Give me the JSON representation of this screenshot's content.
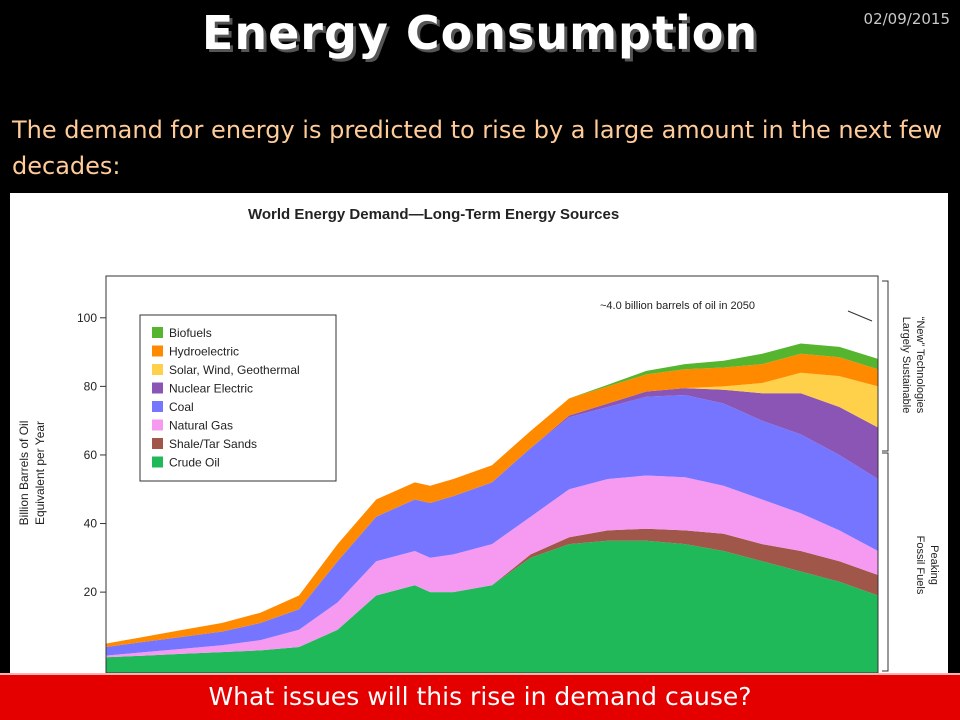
{
  "slide": {
    "title": "Energy Consumption",
    "date": "02/09/2015",
    "body": "The demand for energy is predicted to rise by a large amount in the next few decades:",
    "footer": "What issues will this rise in demand cause?"
  },
  "chart_data": {
    "type": "area",
    "stacked": true,
    "title": "World Energy Demand—Long-Term Energy Sources",
    "ylabel_lines": [
      "Billion Barrels of Oil",
      "Equivalent per Year"
    ],
    "yticks": [
      20,
      40,
      60,
      80,
      100
    ],
    "ylim": [
      0,
      115
    ],
    "grid": false,
    "legend_position": "top-left",
    "annotations": {
      "top": "~4.0 billion barrels of oil in 2050",
      "bracket_upper": [
        "“New” Technologies",
        "Largely Sustainable"
      ],
      "bracket_lower": [
        "Peaking",
        "Fossil Fuels"
      ]
    },
    "x": [
      0,
      5,
      10,
      15,
      20,
      25,
      30,
      35,
      40,
      42,
      45,
      50,
      55,
      60,
      65,
      70,
      75,
      80,
      85,
      90,
      95,
      100
    ],
    "series": [
      {
        "name": "Crude Oil",
        "color": "#1fb95a",
        "values": [
          1,
          1.5,
          2,
          2.5,
          3,
          4,
          9,
          19,
          22,
          20,
          20,
          22,
          30,
          34,
          35,
          35,
          34,
          32,
          29,
          26,
          23,
          19
        ]
      },
      {
        "name": "Shale/Tar Sands",
        "color": "#a0574a",
        "values": [
          0,
          0,
          0,
          0,
          0,
          0,
          0,
          0,
          0,
          0,
          0,
          0,
          1,
          2,
          3,
          3.5,
          4,
          5,
          5,
          6,
          6,
          6
        ]
      },
      {
        "name": "Natural Gas",
        "color": "#f59af0",
        "values": [
          0.5,
          1,
          1.5,
          2,
          3,
          5,
          8,
          10,
          10,
          10,
          11,
          12,
          11,
          14,
          15,
          15.5,
          15.5,
          14,
          13,
          11,
          9,
          7
        ]
      },
      {
        "name": "Coal",
        "color": "#7575ff",
        "values": [
          2.5,
          3,
          3.5,
          4,
          5,
          6,
          12,
          13,
          15,
          16,
          17,
          18,
          20,
          21,
          21,
          23,
          24,
          24,
          23,
          23,
          22,
          21
        ]
      },
      {
        "name": "Nuclear Electric",
        "color": "#8a55b5",
        "values": [
          0,
          0,
          0,
          0,
          0,
          0,
          0,
          0,
          0,
          0,
          0,
          0,
          0,
          0.5,
          1,
          1.5,
          2,
          4,
          8,
          12,
          14,
          15
        ]
      },
      {
        "name": "Solar, Wind, Geothermal",
        "color": "#ffd04a",
        "values": [
          0,
          0,
          0,
          0,
          0,
          0,
          0,
          0,
          0,
          0,
          0,
          0,
          0,
          0,
          0,
          0,
          0,
          1,
          3,
          6,
          9,
          12
        ]
      },
      {
        "name": "Hydroelectric",
        "color": "#ff8a00",
        "values": [
          1,
          1.5,
          2,
          2.5,
          3,
          4,
          5,
          5,
          5,
          5,
          5,
          5,
          5,
          5,
          5,
          5,
          5.5,
          5.5,
          5.5,
          5.5,
          5.5,
          5
        ]
      },
      {
        "name": "Biofuels",
        "color": "#55b52e",
        "values": [
          0,
          0,
          0,
          0,
          0,
          0,
          0,
          0,
          0,
          0,
          0,
          0,
          0,
          0,
          0.5,
          1,
          1.5,
          2,
          3,
          3,
          3,
          3
        ]
      }
    ],
    "legend_order": [
      "Biofuels",
      "Hydroelectric",
      "Solar, Wind, Geothermal",
      "Nuclear Electric",
      "Coal",
      "Natural Gas",
      "Shale/Tar Sands",
      "Crude Oil"
    ]
  }
}
